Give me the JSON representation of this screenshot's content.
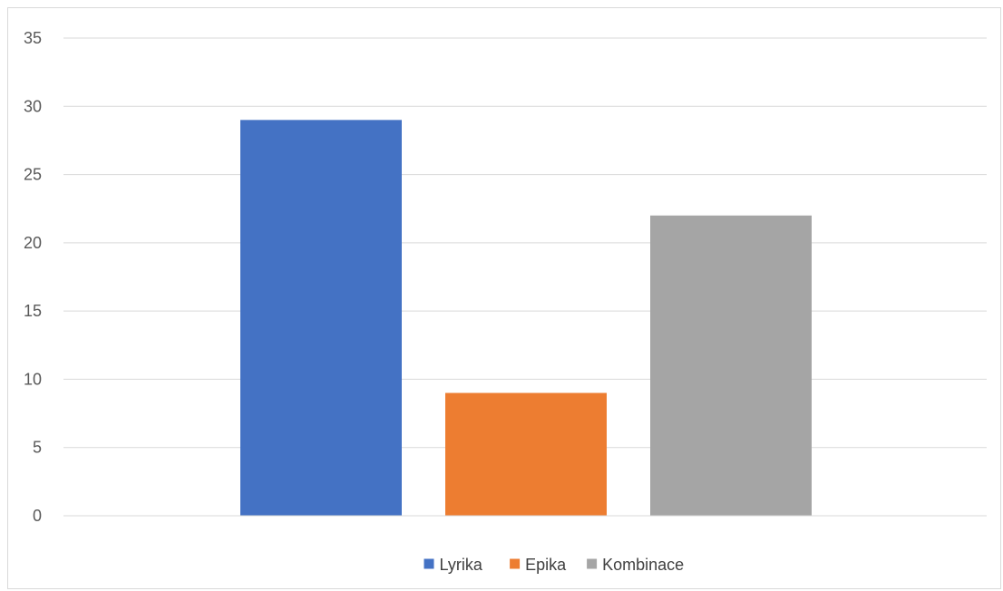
{
  "chart_data": {
    "type": "bar",
    "title": "",
    "xlabel": "",
    "ylabel": "",
    "ylim": [
      0,
      35
    ],
    "yticks": [
      0,
      5,
      10,
      15,
      20,
      25,
      30,
      35
    ],
    "grid": true,
    "legend_position": "bottom",
    "series": [
      {
        "name": "Lyrika",
        "value": 29,
        "color": "#4472c4"
      },
      {
        "name": "Epika",
        "value": 9,
        "color": "#ed7d31"
      },
      {
        "name": "Kombinace",
        "value": 22,
        "color": "#a5a5a5"
      }
    ]
  }
}
